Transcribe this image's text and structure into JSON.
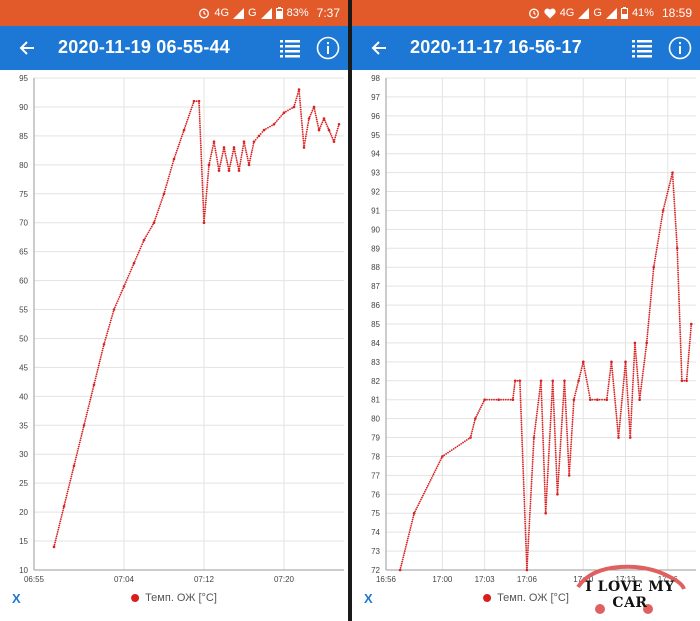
{
  "colors": {
    "status_bar": "#e25a2a",
    "app_bar": "#1c78d4",
    "series": "#d71f1f",
    "grid": "#e3e3e3"
  },
  "left": {
    "status": {
      "icons": [
        "alarm-icon",
        "4g-icon",
        "signal-icon",
        "g-icon",
        "signal-icon",
        "battery-icon"
      ],
      "battery": "83%",
      "time": "7:37"
    },
    "title": "2020-11-19 06-55-44",
    "close_label": "X",
    "legend": "Темп. ОЖ [°C]"
  },
  "right": {
    "status": {
      "icons": [
        "alarm-icon",
        "heart-icon",
        "4g-icon",
        "signal-icon",
        "g-icon",
        "signal-icon",
        "battery-icon"
      ],
      "battery": "41%",
      "time": "18:59"
    },
    "title": "2020-11-17 16-56-17",
    "close_label": "X",
    "legend": "Темп. ОЖ [°C]"
  },
  "watermark": {
    "text": "I LOVE MY CAR"
  },
  "chart_data": [
    {
      "type": "scatter",
      "ylim": [
        10,
        95
      ],
      "xlim": [
        "06:55",
        "07:26"
      ],
      "yticks": [
        10,
        15,
        20,
        25,
        30,
        35,
        40,
        45,
        50,
        55,
        60,
        65,
        70,
        75,
        80,
        85,
        90,
        95
      ],
      "xticks": [
        "06:55",
        "07:04",
        "07:12",
        "07:20"
      ],
      "grid": true,
      "legend_position": "bottom",
      "series": [
        {
          "name": "Темп. ОЖ [°C]",
          "color": "#d71f1f",
          "points": [
            [
              "06:57",
              14
            ],
            [
              "06:58",
              21
            ],
            [
              "06:59",
              28
            ],
            [
              "07:00",
              35
            ],
            [
              "07:01",
              42
            ],
            [
              "07:02",
              49
            ],
            [
              "07:03",
              55
            ],
            [
              "07:04",
              59
            ],
            [
              "07:05",
              63
            ],
            [
              "07:06",
              67
            ],
            [
              "07:07",
              70
            ],
            [
              "07:08",
              75
            ],
            [
              "07:09",
              81
            ],
            [
              "07:10",
              86
            ],
            [
              "07:11",
              91
            ],
            [
              "07:11:30",
              91
            ],
            [
              "07:12",
              70
            ],
            [
              "07:12:30",
              80
            ],
            [
              "07:13",
              84
            ],
            [
              "07:13:30",
              79
            ],
            [
              "07:14",
              83
            ],
            [
              "07:14:30",
              79
            ],
            [
              "07:15",
              83
            ],
            [
              "07:15:30",
              79
            ],
            [
              "07:16",
              84
            ],
            [
              "07:16:30",
              80
            ],
            [
              "07:17",
              84
            ],
            [
              "07:17:30",
              85
            ],
            [
              "07:18",
              86
            ],
            [
              "07:19",
              87
            ],
            [
              "07:20",
              89
            ],
            [
              "07:21",
              90
            ],
            [
              "07:21:30",
              93
            ],
            [
              "07:22",
              83
            ],
            [
              "07:22:30",
              88
            ],
            [
              "07:23",
              90
            ],
            [
              "07:23:30",
              86
            ],
            [
              "07:24",
              88
            ],
            [
              "07:24:30",
              86
            ],
            [
              "07:25",
              84
            ],
            [
              "07:25:30",
              87
            ]
          ]
        }
      ]
    },
    {
      "type": "scatter",
      "ylim": [
        72,
        98
      ],
      "xlim": [
        "16:56",
        "17:18"
      ],
      "yticks": [
        72,
        73,
        74,
        75,
        76,
        77,
        78,
        79,
        80,
        81,
        82,
        83,
        84,
        85,
        86,
        87,
        88,
        89,
        90,
        91,
        92,
        93,
        94,
        95,
        96,
        97,
        98
      ],
      "xticks": [
        "16:56",
        "17:00",
        "17:03",
        "17:06",
        "17:10",
        "17:13",
        "17:16"
      ],
      "grid": true,
      "legend_position": "bottom",
      "series": [
        {
          "name": "Темп. ОЖ [°C]",
          "color": "#d71f1f",
          "points": [
            [
              "16:57",
              72
            ],
            [
              "16:58",
              75
            ],
            [
              "17:00",
              78
            ],
            [
              "17:02",
              79
            ],
            [
              "17:02:20",
              80
            ],
            [
              "17:03",
              81
            ],
            [
              "17:04",
              81
            ],
            [
              "17:05",
              81
            ],
            [
              "17:05:10",
              82
            ],
            [
              "17:05:30",
              82
            ],
            [
              "17:06",
              72
            ],
            [
              "17:06:30",
              79
            ],
            [
              "17:07",
              82
            ],
            [
              "17:07:20",
              75
            ],
            [
              "17:07:50",
              82
            ],
            [
              "17:08:10",
              76
            ],
            [
              "17:08:40",
              82
            ],
            [
              "17:09",
              77
            ],
            [
              "17:09:20",
              81
            ],
            [
              "17:09:40",
              82
            ],
            [
              "17:10",
              83
            ],
            [
              "17:10:30",
              81
            ],
            [
              "17:11",
              81
            ],
            [
              "17:11:40",
              81
            ],
            [
              "17:12",
              83
            ],
            [
              "17:12:30",
              79
            ],
            [
              "17:13",
              83
            ],
            [
              "17:13:20",
              79
            ],
            [
              "17:13:40",
              84
            ],
            [
              "17:14",
              81
            ],
            [
              "17:14:30",
              84
            ],
            [
              "17:15",
              88
            ],
            [
              "17:15:40",
              91
            ],
            [
              "17:16:20",
              93
            ],
            [
              "17:16:40",
              89
            ],
            [
              "17:17",
              82
            ],
            [
              "17:17:20",
              82
            ],
            [
              "17:17:40",
              85
            ]
          ]
        }
      ]
    }
  ]
}
